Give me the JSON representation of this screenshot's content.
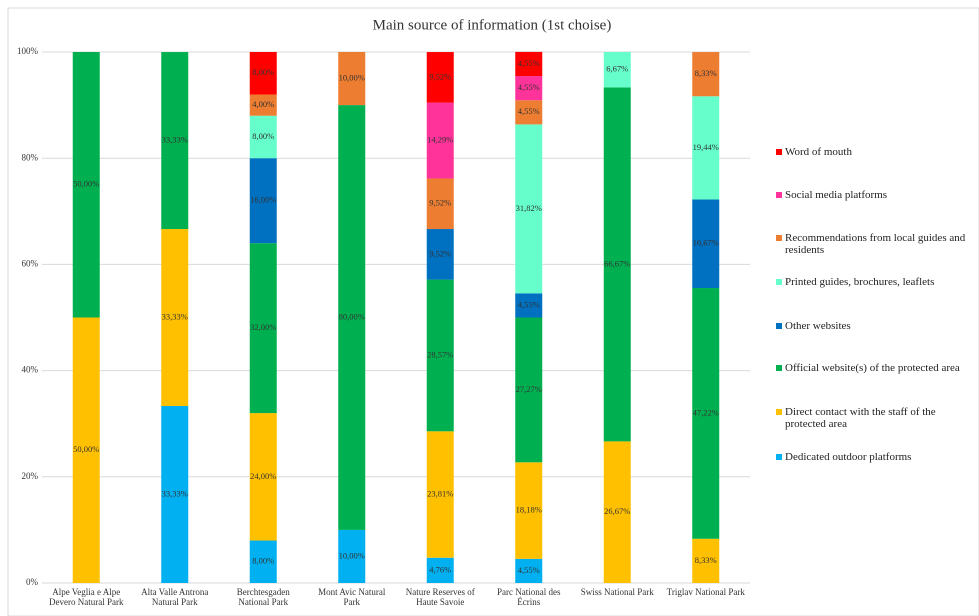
{
  "chart_data": {
    "type": "stacked_bar",
    "title": "Main source of information (1st choise)",
    "categories": [
      "Alpe Veglia e Alpe Devero Natural Park",
      "Alta Valle Antrona Natural Park",
      "Berchtesgaden National Park",
      "Mont Avic Natural Park",
      "Nature Reserves of Haute Savoie",
      "Parc National des Écrins",
      "Swiss National Park",
      "Triglav National Park"
    ],
    "series": [
      {
        "name": "Dedicated outdoor platforms",
        "color": "#00b0f0",
        "values": [
          null,
          33.33,
          8,
          10,
          4.76,
          4.55,
          null,
          null
        ],
        "value_labels": [
          null,
          "33,33%",
          "8,00%",
          "10,00%",
          "4,76%",
          "4,55%",
          null,
          null
        ]
      },
      {
        "name": "Direct contact with the staff of the protected area",
        "color": "#ffc000",
        "values": [
          50,
          33.33,
          24,
          null,
          23.81,
          18.18,
          26.67,
          8.33
        ],
        "value_labels": [
          "50,00%",
          "33,33%",
          "24,00%",
          null,
          "23,81%",
          "18,18%",
          "26,67%",
          "8,33%"
        ]
      },
      {
        "name": "Official website(s) of the protected area",
        "color": "#00b050",
        "values": [
          50,
          33.33,
          32,
          80,
          28.57,
          27.27,
          66.67,
          47.22
        ],
        "value_labels": [
          "50,00%",
          "33,33%",
          "32,00%",
          "80,00%",
          "28,57%",
          "27,27%",
          "66,67%",
          "47,22%"
        ]
      },
      {
        "name": "Other websites",
        "color": "#0070c0",
        "values": [
          null,
          null,
          16,
          null,
          9.52,
          4.55,
          null,
          16.67
        ],
        "value_labels": [
          null,
          null,
          "16,00%",
          null,
          "9,52%",
          "4,55%",
          null,
          "16,67%"
        ]
      },
      {
        "name": "Printed guides, brochures, leaflets",
        "color": "#66ffcc",
        "values": [
          null,
          null,
          8,
          null,
          null,
          31.82,
          6.67,
          19.44
        ],
        "value_labels": [
          null,
          null,
          "8,00%",
          null,
          null,
          "31,82%",
          "6,67%",
          "19,44%"
        ]
      },
      {
        "name": "Recommendations from local guides and residents",
        "color": "#ed7d31",
        "values": [
          null,
          null,
          4,
          10,
          9.52,
          4.55,
          null,
          8.33
        ],
        "value_labels": [
          null,
          null,
          "4,00%",
          "10,00%",
          "9,52%",
          "4,55%",
          null,
          "8,33%"
        ]
      },
      {
        "name": "Social media platforms",
        "color": "#ff3399",
        "values": [
          null,
          null,
          null,
          null,
          14.29,
          4.55,
          null,
          null
        ],
        "value_labels": [
          null,
          null,
          null,
          null,
          "14,29%",
          "4,55%",
          null,
          null
        ]
      },
      {
        "name": "Word of mouth",
        "color": "#ff0000",
        "values": [
          null,
          null,
          8,
          null,
          9.52,
          4.55,
          null,
          null
        ],
        "value_labels": [
          null,
          null,
          "8,00%",
          null,
          "9,52%",
          "4,55%",
          null,
          null
        ]
      }
    ],
    "ylim": [
      0,
      100
    ],
    "yticks": [
      {
        "value": 0,
        "label": "0%"
      },
      {
        "value": 20,
        "label": "20%"
      },
      {
        "value": 40,
        "label": "40%"
      },
      {
        "value": 60,
        "label": "60%"
      },
      {
        "value": 80,
        "label": "80%"
      },
      {
        "value": 100,
        "label": "100%"
      }
    ],
    "grid": true,
    "legend": "right"
  }
}
